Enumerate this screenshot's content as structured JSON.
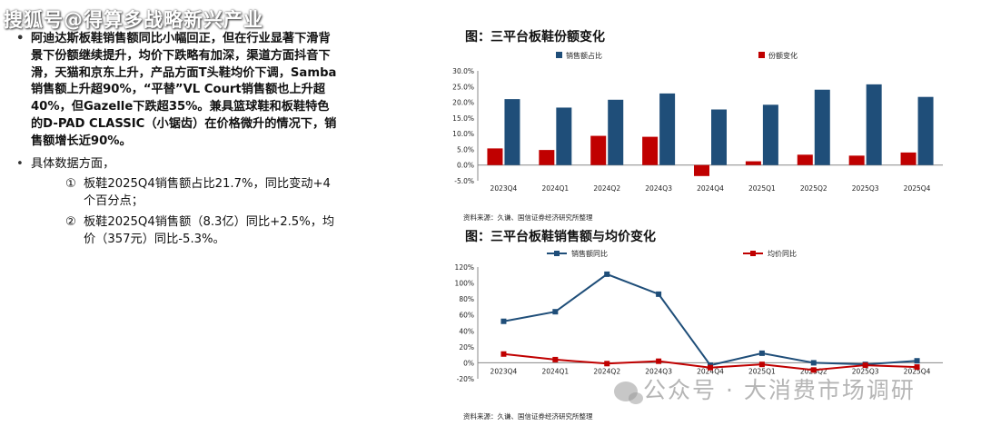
{
  "header": {
    "watermark": "搜狐号@得算多战略新兴产业"
  },
  "text": {
    "bullet1": "阿迪达斯板鞋销售额同比小幅回正，但在行业显著下滑背景下份额继续提升，均价下跌略有加深，渠道方面抖音下滑，天猫和京东上升，产品方面T头鞋均价下调，Samba销售额上升超90%，“平替”VL Court销售额也上升超40%，但Gazelle下跌超35%。兼具篮球鞋和板鞋特色的D-PAD CLASSIC（小锯齿）在价格微升的情况下，销售额增长近90%。",
    "bullet2": "具体数据方面，",
    "sub1_num": "①",
    "sub1": "板鞋2025Q4销售额占比21.7%，同比变动+4个百分点；",
    "sub2_num": "②",
    "sub2": "板鞋2025Q4销售额（8.3亿）同比+2.5%，均价（357元）同比-5.3%。"
  },
  "footer_watermark": {
    "text": "公众号 · 大消费市场调研"
  },
  "chart_data": [
    {
      "type": "bar",
      "title": "图：三平台板鞋份额变化",
      "categories": [
        "2023Q4",
        "2024Q1",
        "2024Q2",
        "2024Q3",
        "2024Q4",
        "2025Q1",
        "2025Q2",
        "2025Q3",
        "2025Q4"
      ],
      "series": [
        {
          "name": "销售额占比",
          "color": "#1f4e79",
          "values": [
            21.0,
            18.3,
            20.8,
            22.8,
            17.7,
            19.2,
            24.0,
            25.7,
            21.7
          ]
        },
        {
          "name": "份额变化",
          "color": "#c00000",
          "values": [
            5.3,
            4.8,
            9.3,
            9.0,
            -3.5,
            1.2,
            3.3,
            3.0,
            4.0
          ]
        }
      ],
      "yticks": [
        "30.0%",
        "25.0%",
        "20.0%",
        "15.0%",
        "10.0%",
        "5.0%",
        "0.0%",
        "-5.0%"
      ],
      "ylim": [
        -5,
        30
      ],
      "legend": "top",
      "source": "资料来源：久谦、国信证券经济研究所整理"
    },
    {
      "type": "line",
      "title": "图：三平台板鞋销售额与均价变化",
      "categories": [
        "2023Q4",
        "2024Q1",
        "2024Q2",
        "2024Q3",
        "2024Q4",
        "2025Q1",
        "2025Q2",
        "2025Q3",
        "2025Q4"
      ],
      "series": [
        {
          "name": "销售额同比",
          "color": "#1f4e79",
          "values": [
            52,
            64,
            111,
            86,
            -3,
            12,
            0,
            -2,
            2.5
          ]
        },
        {
          "name": "均价同比",
          "color": "#c00000",
          "values": [
            11,
            4,
            -1,
            2,
            -6,
            -2,
            -9,
            -3,
            -5.3
          ]
        }
      ],
      "yticks": [
        "120%",
        "100%",
        "80%",
        "60%",
        "40%",
        "20%",
        "0%",
        "-20%"
      ],
      "ylim": [
        -20,
        120
      ],
      "legend": "top",
      "source": "资料来源：久谦、国信证券经济研究所整理"
    }
  ]
}
